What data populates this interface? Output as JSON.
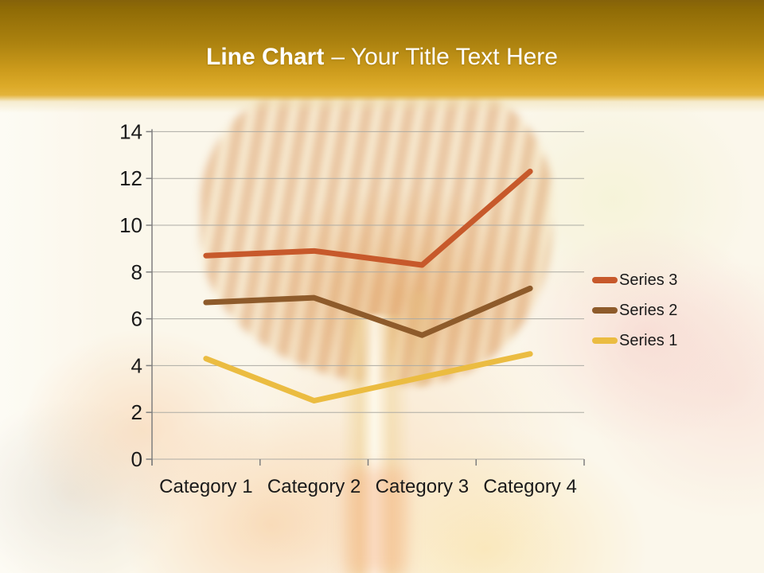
{
  "title": {
    "bold": "Line Chart",
    "rest": "– Your Title Text Here"
  },
  "chart_data": {
    "type": "line",
    "title": "",
    "xlabel": "",
    "ylabel": "",
    "categories": [
      "Category 1",
      "Category 2",
      "Category 3",
      "Category 4"
    ],
    "series": [
      {
        "name": "Series 3",
        "color": "#C7592B",
        "values": [
          8.7,
          8.9,
          8.3,
          12.3
        ]
      },
      {
        "name": "Series 2",
        "color": "#8E5B2B",
        "values": [
          6.7,
          6.9,
          5.3,
          7.3
        ]
      },
      {
        "name": "Series 1",
        "color": "#EBBC41",
        "values": [
          4.3,
          2.5,
          3.5,
          4.5
        ]
      }
    ],
    "ylim": [
      0,
      14
    ],
    "ytick_step": 2,
    "yticks": [
      0,
      2,
      4,
      6,
      8,
      10,
      12,
      14
    ],
    "grid": true,
    "legend_position": "right",
    "legend_order": [
      "Series 3",
      "Series 2",
      "Series 1"
    ]
  },
  "colors": {
    "band_dark": "#85620A",
    "band_gold": "#DCAA28",
    "grid_line": "#ADABA4",
    "axis_line": "#7F7F7F",
    "tick_text": "#1A1A1A",
    "title_text": "#FFFFFF"
  }
}
